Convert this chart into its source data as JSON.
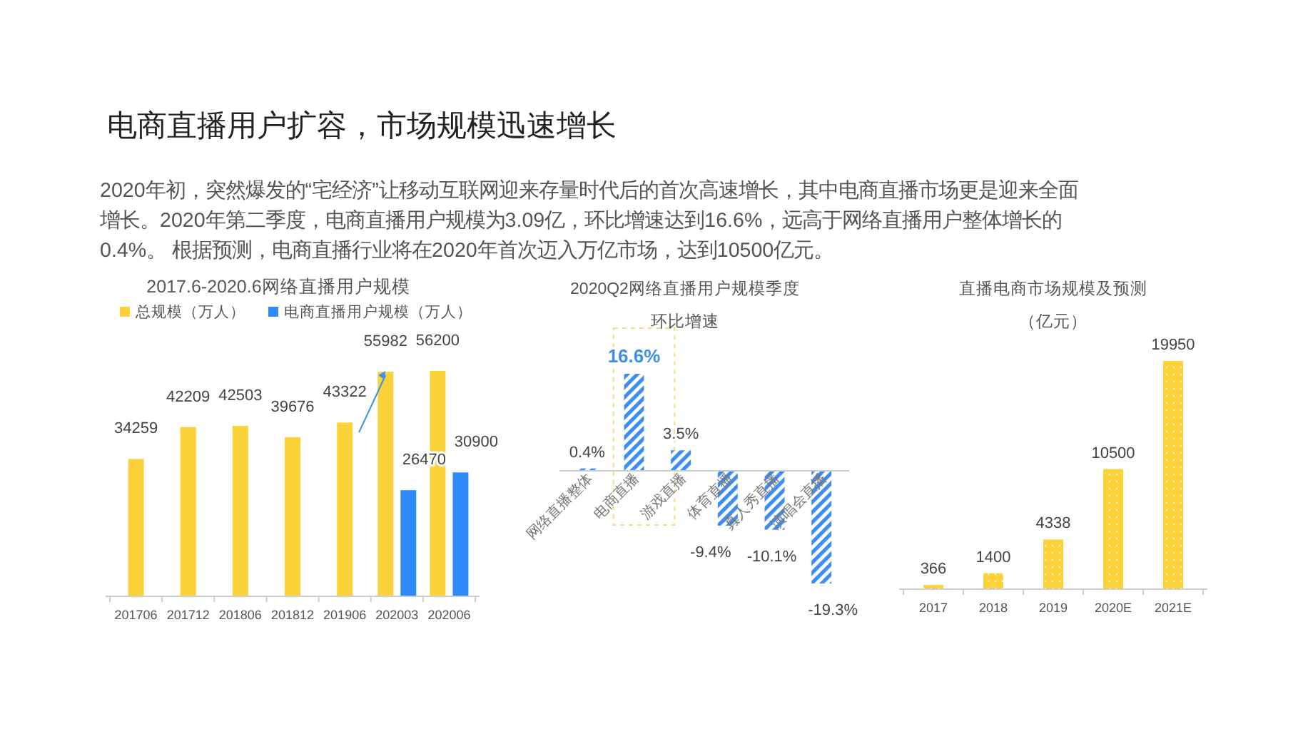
{
  "chart_data": [
    {
      "type": "bar",
      "title": "2017.6-2020.6网络直播用户规模",
      "categories": [
        "201706",
        "201712",
        "201806",
        "201812",
        "201906",
        "202003",
        "202006"
      ],
      "series": [
        {
          "name": "总规模（万人）",
          "color": "#fcd23a",
          "values": [
            34259,
            42209,
            42503,
            39676,
            43322,
            55982,
            56200
          ]
        },
        {
          "name": "电商直播用户规模（万人）",
          "color": "#2e8bf7",
          "values": [
            null,
            null,
            null,
            null,
            null,
            26470,
            30900
          ]
        }
      ],
      "data_labels": true,
      "legend": "top",
      "annotations": [
        "电商直播用户扩容，市场规模迅速增长",
        "2020年初，突然爆发的“宅经济”让移动互联网迎来存量时代后的首次高速增长，其中电商直播市场更是迎来全面",
        "增长。2020年第二季度，电商直播用户规模为3.09亿，环比增速达到16.6%，远高于网络直播用户整体增长的",
        "0.4%。 根据预测，电商直播行业将在2020年首次迈入万亿市场，达到10500亿元。"
      ]
    },
    {
      "type": "bar",
      "title": "2020Q2网络直播用户规模季度",
      "subtitle": "环比增速",
      "categories": [
        "网络直播整体",
        "电商直播",
        "游戏直播",
        "体育直播",
        "真人秀直播",
        "演唱会直播"
      ],
      "values": [
        0.4,
        16.6,
        3.5,
        -9.4,
        -10.1,
        -19.3
      ],
      "color": "#3d8ef0",
      "value_labels": [
        "0.4%",
        "16.6%",
        "3.5%",
        "-9.4%",
        "-10.1%",
        "-19.3%"
      ]
    },
    {
      "type": "bar",
      "title": "直播电商市场规模及预测",
      "subtitle": "（亿元）",
      "categories": [
        "2017",
        "2018",
        "2019",
        "2020E",
        "2021E"
      ],
      "values": [
        366,
        1400,
        4338,
        10500,
        19950
      ],
      "color": "#fcd23a",
      "data_labels": true
    }
  ]
}
